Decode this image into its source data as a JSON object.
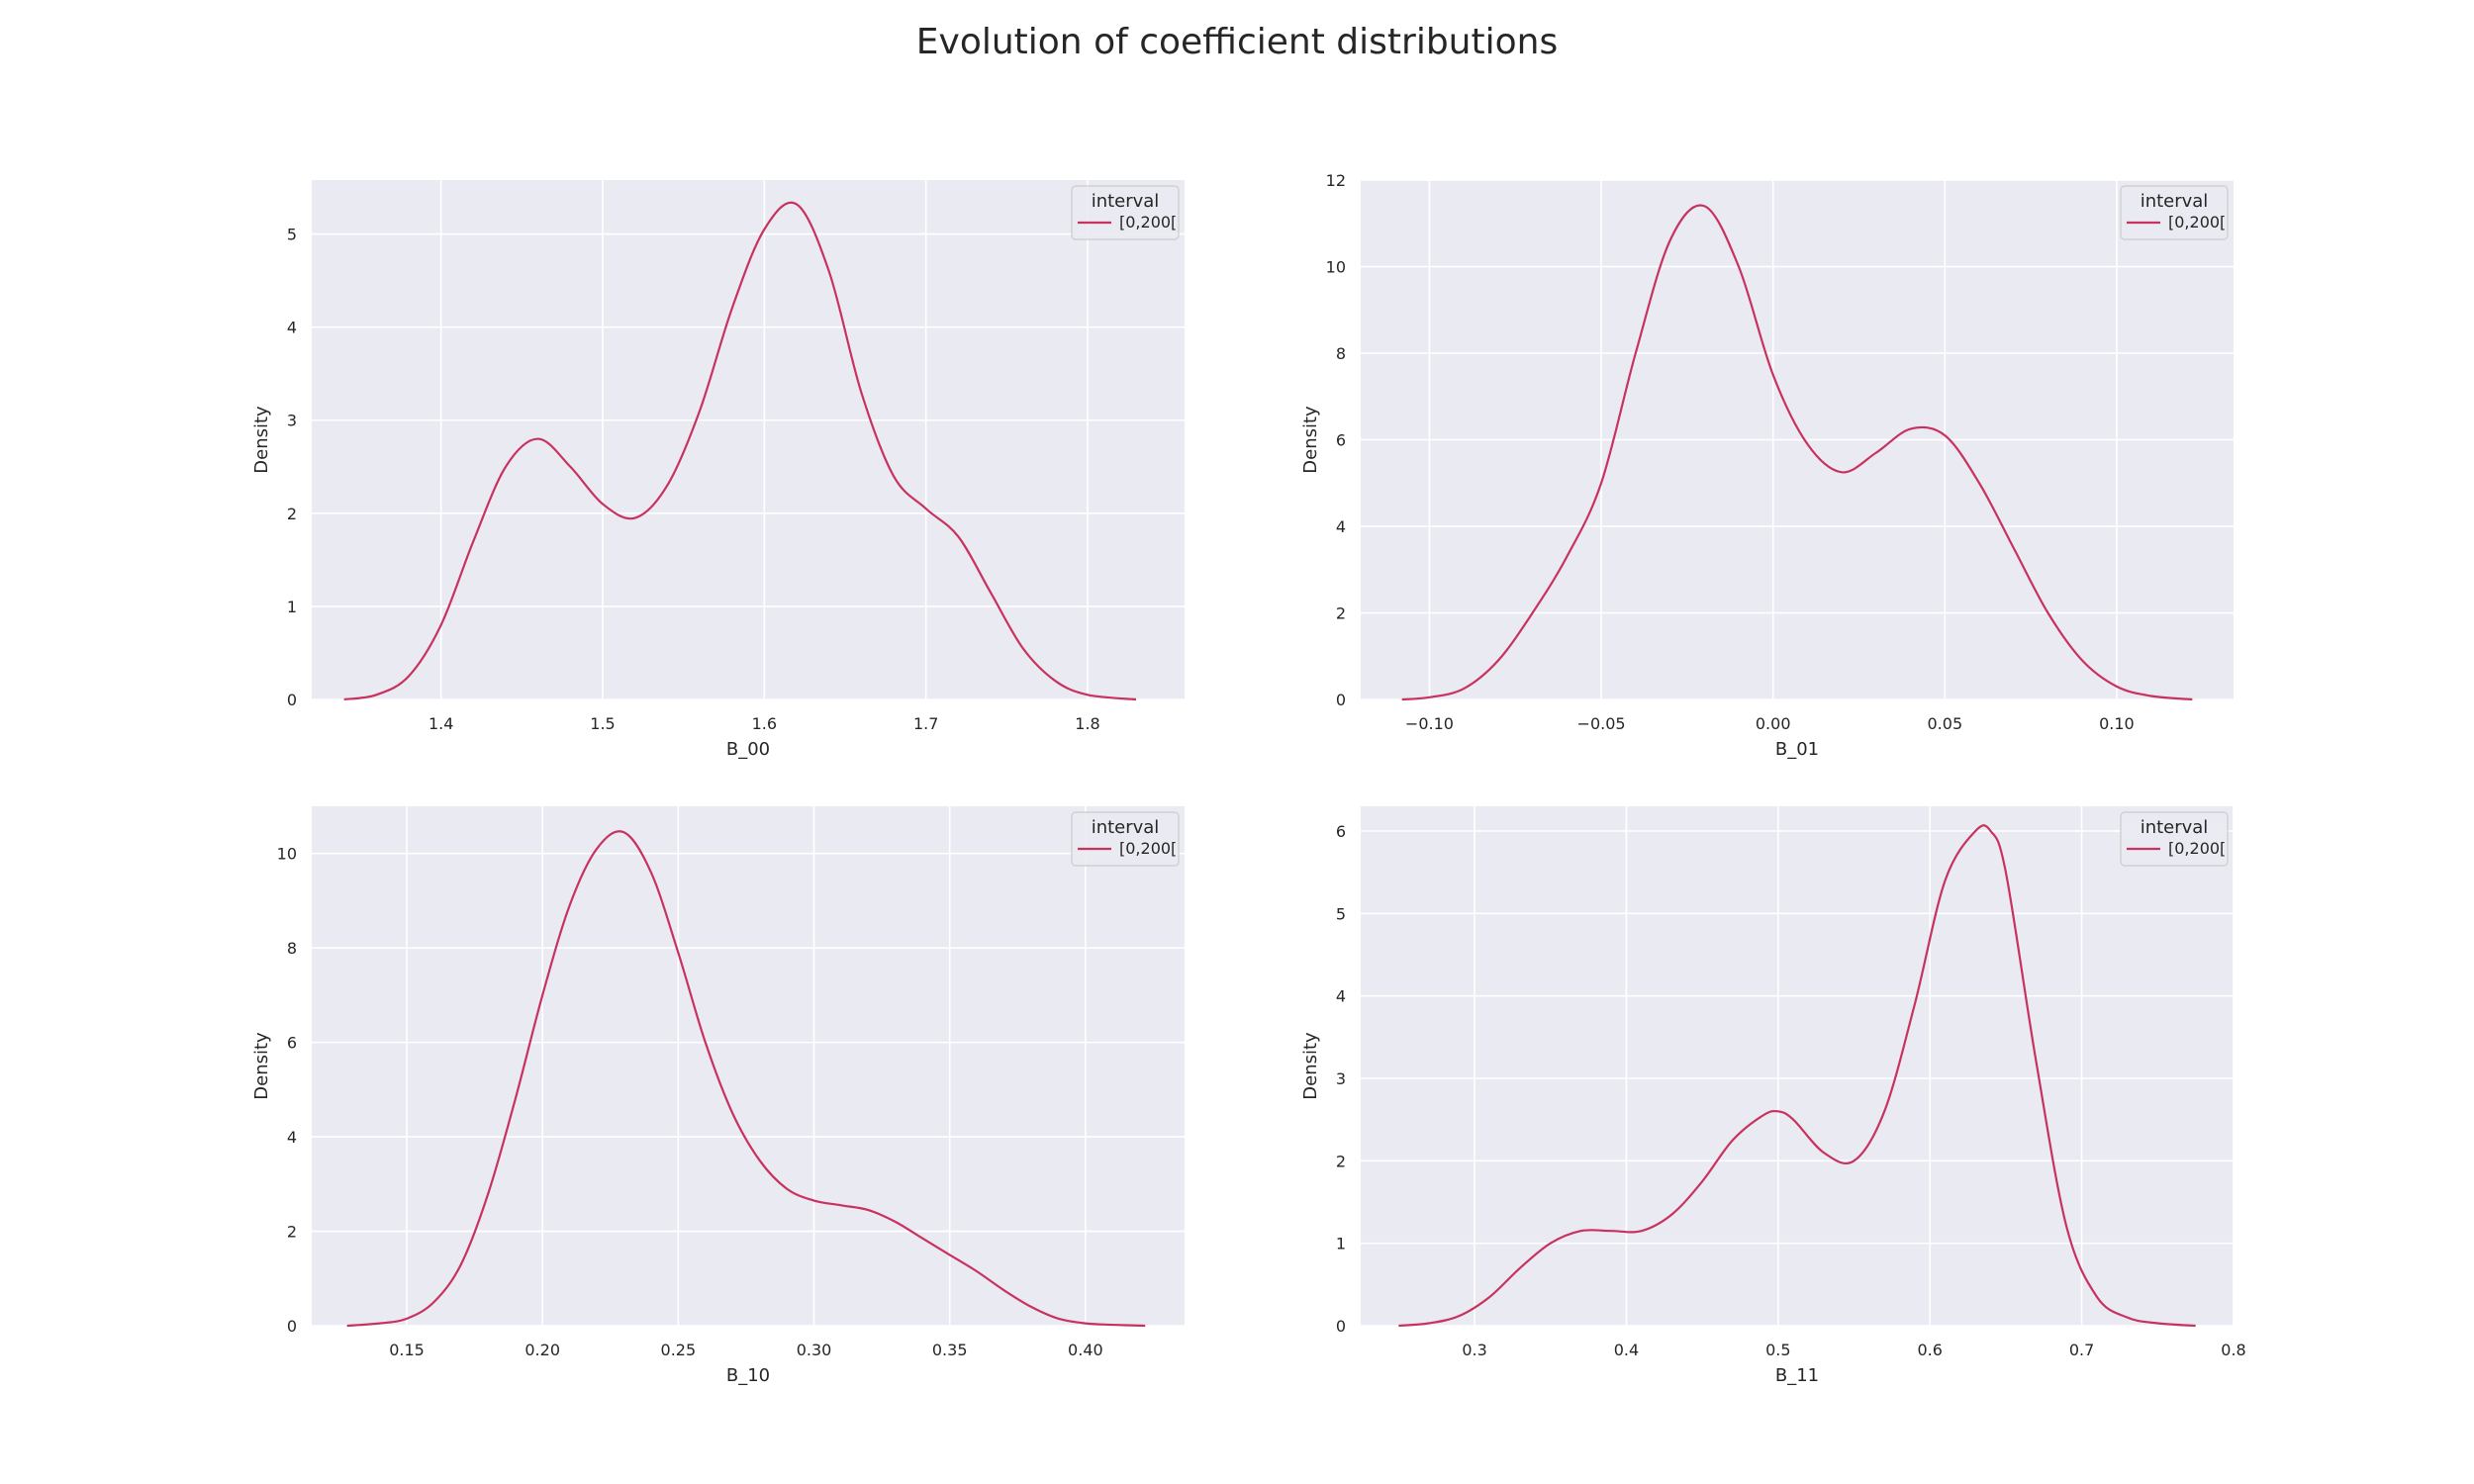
{
  "figure": {
    "title": "Evolution of coefficient distributions"
  },
  "style": {
    "panel_bg": "#EAEAF2",
    "grid_color": "#FFFFFF",
    "line_color": "#C8325E",
    "legend_bg": "#EAEAF2",
    "legend_border": "#CCCCCC"
  },
  "chart_data": [
    {
      "type": "line",
      "subtype": "kde",
      "xlabel": "B_00",
      "ylabel": "Density",
      "xlim": [
        1.32,
        1.86
      ],
      "ylim": [
        0,
        5.58
      ],
      "xticks": [
        1.4,
        1.5,
        1.6,
        1.7,
        1.8
      ],
      "xtick_labels": [
        "1.4",
        "1.5",
        "1.6",
        "1.7",
        "1.8"
      ],
      "yticks": [
        0,
        1,
        2,
        3,
        4,
        5
      ],
      "ytick_labels": [
        "0",
        "1",
        "2",
        "3",
        "4",
        "5"
      ],
      "grid": true,
      "legend": {
        "title": "interval",
        "position": "upper right",
        "entries": [
          "[0,200["
        ]
      },
      "series": [
        {
          "name": "[0,200[",
          "x": [
            1.34,
            1.36,
            1.38,
            1.4,
            1.42,
            1.44,
            1.46,
            1.48,
            1.5,
            1.52,
            1.54,
            1.56,
            1.58,
            1.6,
            1.62,
            1.64,
            1.66,
            1.68,
            1.7,
            1.72,
            1.74,
            1.76,
            1.78,
            1.8,
            1.83
          ],
          "y": [
            0.0,
            0.05,
            0.25,
            0.8,
            1.7,
            2.5,
            2.8,
            2.5,
            2.1,
            1.95,
            2.3,
            3.1,
            4.2,
            5.05,
            5.32,
            4.6,
            3.3,
            2.4,
            2.05,
            1.75,
            1.15,
            0.55,
            0.2,
            0.05,
            0.0
          ]
        }
      ]
    },
    {
      "type": "line",
      "subtype": "kde",
      "xlabel": "B_01",
      "ylabel": "Density",
      "xlim": [
        -0.12,
        0.134
      ],
      "ylim": [
        0,
        12
      ],
      "xticks": [
        -0.1,
        -0.05,
        0.0,
        0.05,
        0.1
      ],
      "xtick_labels": [
        "−0.10",
        "−0.05",
        "0.00",
        "0.05",
        "0.10"
      ],
      "yticks": [
        0,
        2,
        4,
        6,
        8,
        10,
        12
      ],
      "ytick_labels": [
        "0",
        "2",
        "4",
        "6",
        "8",
        "10",
        "12"
      ],
      "grid": true,
      "legend": {
        "title": "interval",
        "position": "upper right",
        "entries": [
          "[0,200["
        ]
      },
      "series": [
        {
          "name": "[0,200[",
          "x": [
            -0.108,
            -0.1,
            -0.09,
            -0.08,
            -0.07,
            -0.06,
            -0.05,
            -0.04,
            -0.03,
            -0.02,
            -0.01,
            0.0,
            0.01,
            0.02,
            0.03,
            0.04,
            0.05,
            0.06,
            0.07,
            0.08,
            0.09,
            0.1,
            0.11,
            0.122
          ],
          "y": [
            0.0,
            0.05,
            0.25,
            0.9,
            2.0,
            3.3,
            5.0,
            8.0,
            10.6,
            11.4,
            10.0,
            7.5,
            5.9,
            5.25,
            5.7,
            6.25,
            6.1,
            5.0,
            3.5,
            2.0,
            0.9,
            0.3,
            0.08,
            0.0
          ]
        }
      ]
    },
    {
      "type": "line",
      "subtype": "kde",
      "xlabel": "B_10",
      "ylabel": "Density",
      "xlim": [
        0.115,
        0.4365
      ],
      "ylim": [
        0,
        11
      ],
      "xticks": [
        0.15,
        0.2,
        0.25,
        0.3,
        0.35,
        0.4
      ],
      "xtick_labels": [
        "0.15",
        "0.20",
        "0.25",
        "0.30",
        "0.35",
        "0.40"
      ],
      "yticks": [
        0,
        2,
        4,
        6,
        8,
        10
      ],
      "ytick_labels": [
        "0",
        "2",
        "4",
        "6",
        "8",
        "10"
      ],
      "grid": true,
      "legend": {
        "title": "interval",
        "position": "upper right",
        "entries": [
          "[0,200["
        ]
      },
      "series": [
        {
          "name": "[0,200[",
          "x": [
            0.128,
            0.14,
            0.15,
            0.16,
            0.17,
            0.18,
            0.19,
            0.2,
            0.21,
            0.22,
            0.23,
            0.24,
            0.25,
            0.26,
            0.27,
            0.28,
            0.29,
            0.3,
            0.31,
            0.32,
            0.33,
            0.34,
            0.35,
            0.36,
            0.37,
            0.38,
            0.39,
            0.4,
            0.41,
            0.422
          ],
          "y": [
            0.0,
            0.05,
            0.15,
            0.5,
            1.3,
            2.8,
            4.8,
            7.0,
            8.9,
            10.1,
            10.45,
            9.6,
            7.9,
            6.0,
            4.5,
            3.5,
            2.9,
            2.65,
            2.55,
            2.45,
            2.2,
            1.85,
            1.5,
            1.15,
            0.75,
            0.4,
            0.15,
            0.05,
            0.02,
            0.0
          ]
        }
      ]
    },
    {
      "type": "line",
      "subtype": "kde",
      "xlabel": "B_11",
      "ylabel": "Density",
      "xlim": [
        0.225,
        0.8
      ],
      "ylim": [
        0,
        6.3
      ],
      "xticks": [
        0.3,
        0.4,
        0.5,
        0.6,
        0.7,
        0.8
      ],
      "xtick_labels": [
        "0.3",
        "0.4",
        "0.5",
        "0.6",
        "0.7",
        "0.8"
      ],
      "yticks": [
        0,
        1,
        2,
        3,
        4,
        5,
        6
      ],
      "ytick_labels": [
        "0",
        "1",
        "2",
        "3",
        "4",
        "5",
        "6"
      ],
      "grid": true,
      "legend": {
        "title": "interval",
        "position": "upper right",
        "entries": [
          "[0,200["
        ]
      },
      "series": [
        {
          "name": "[0,200[",
          "x": [
            0.25,
            0.27,
            0.29,
            0.31,
            0.33,
            0.35,
            0.37,
            0.39,
            0.41,
            0.43,
            0.45,
            0.47,
            0.49,
            0.5,
            0.51,
            0.53,
            0.55,
            0.57,
            0.59,
            0.61,
            0.63,
            0.64,
            0.65,
            0.67,
            0.69,
            0.71,
            0.73,
            0.75,
            0.775
          ],
          "y": [
            0.0,
            0.03,
            0.12,
            0.35,
            0.7,
            1.0,
            1.15,
            1.15,
            1.15,
            1.35,
            1.75,
            2.25,
            2.55,
            2.6,
            2.5,
            2.1,
            2.0,
            2.6,
            3.9,
            5.4,
            6.0,
            6.0,
            5.5,
            3.2,
            1.2,
            0.35,
            0.1,
            0.03,
            0.0
          ]
        }
      ]
    }
  ]
}
